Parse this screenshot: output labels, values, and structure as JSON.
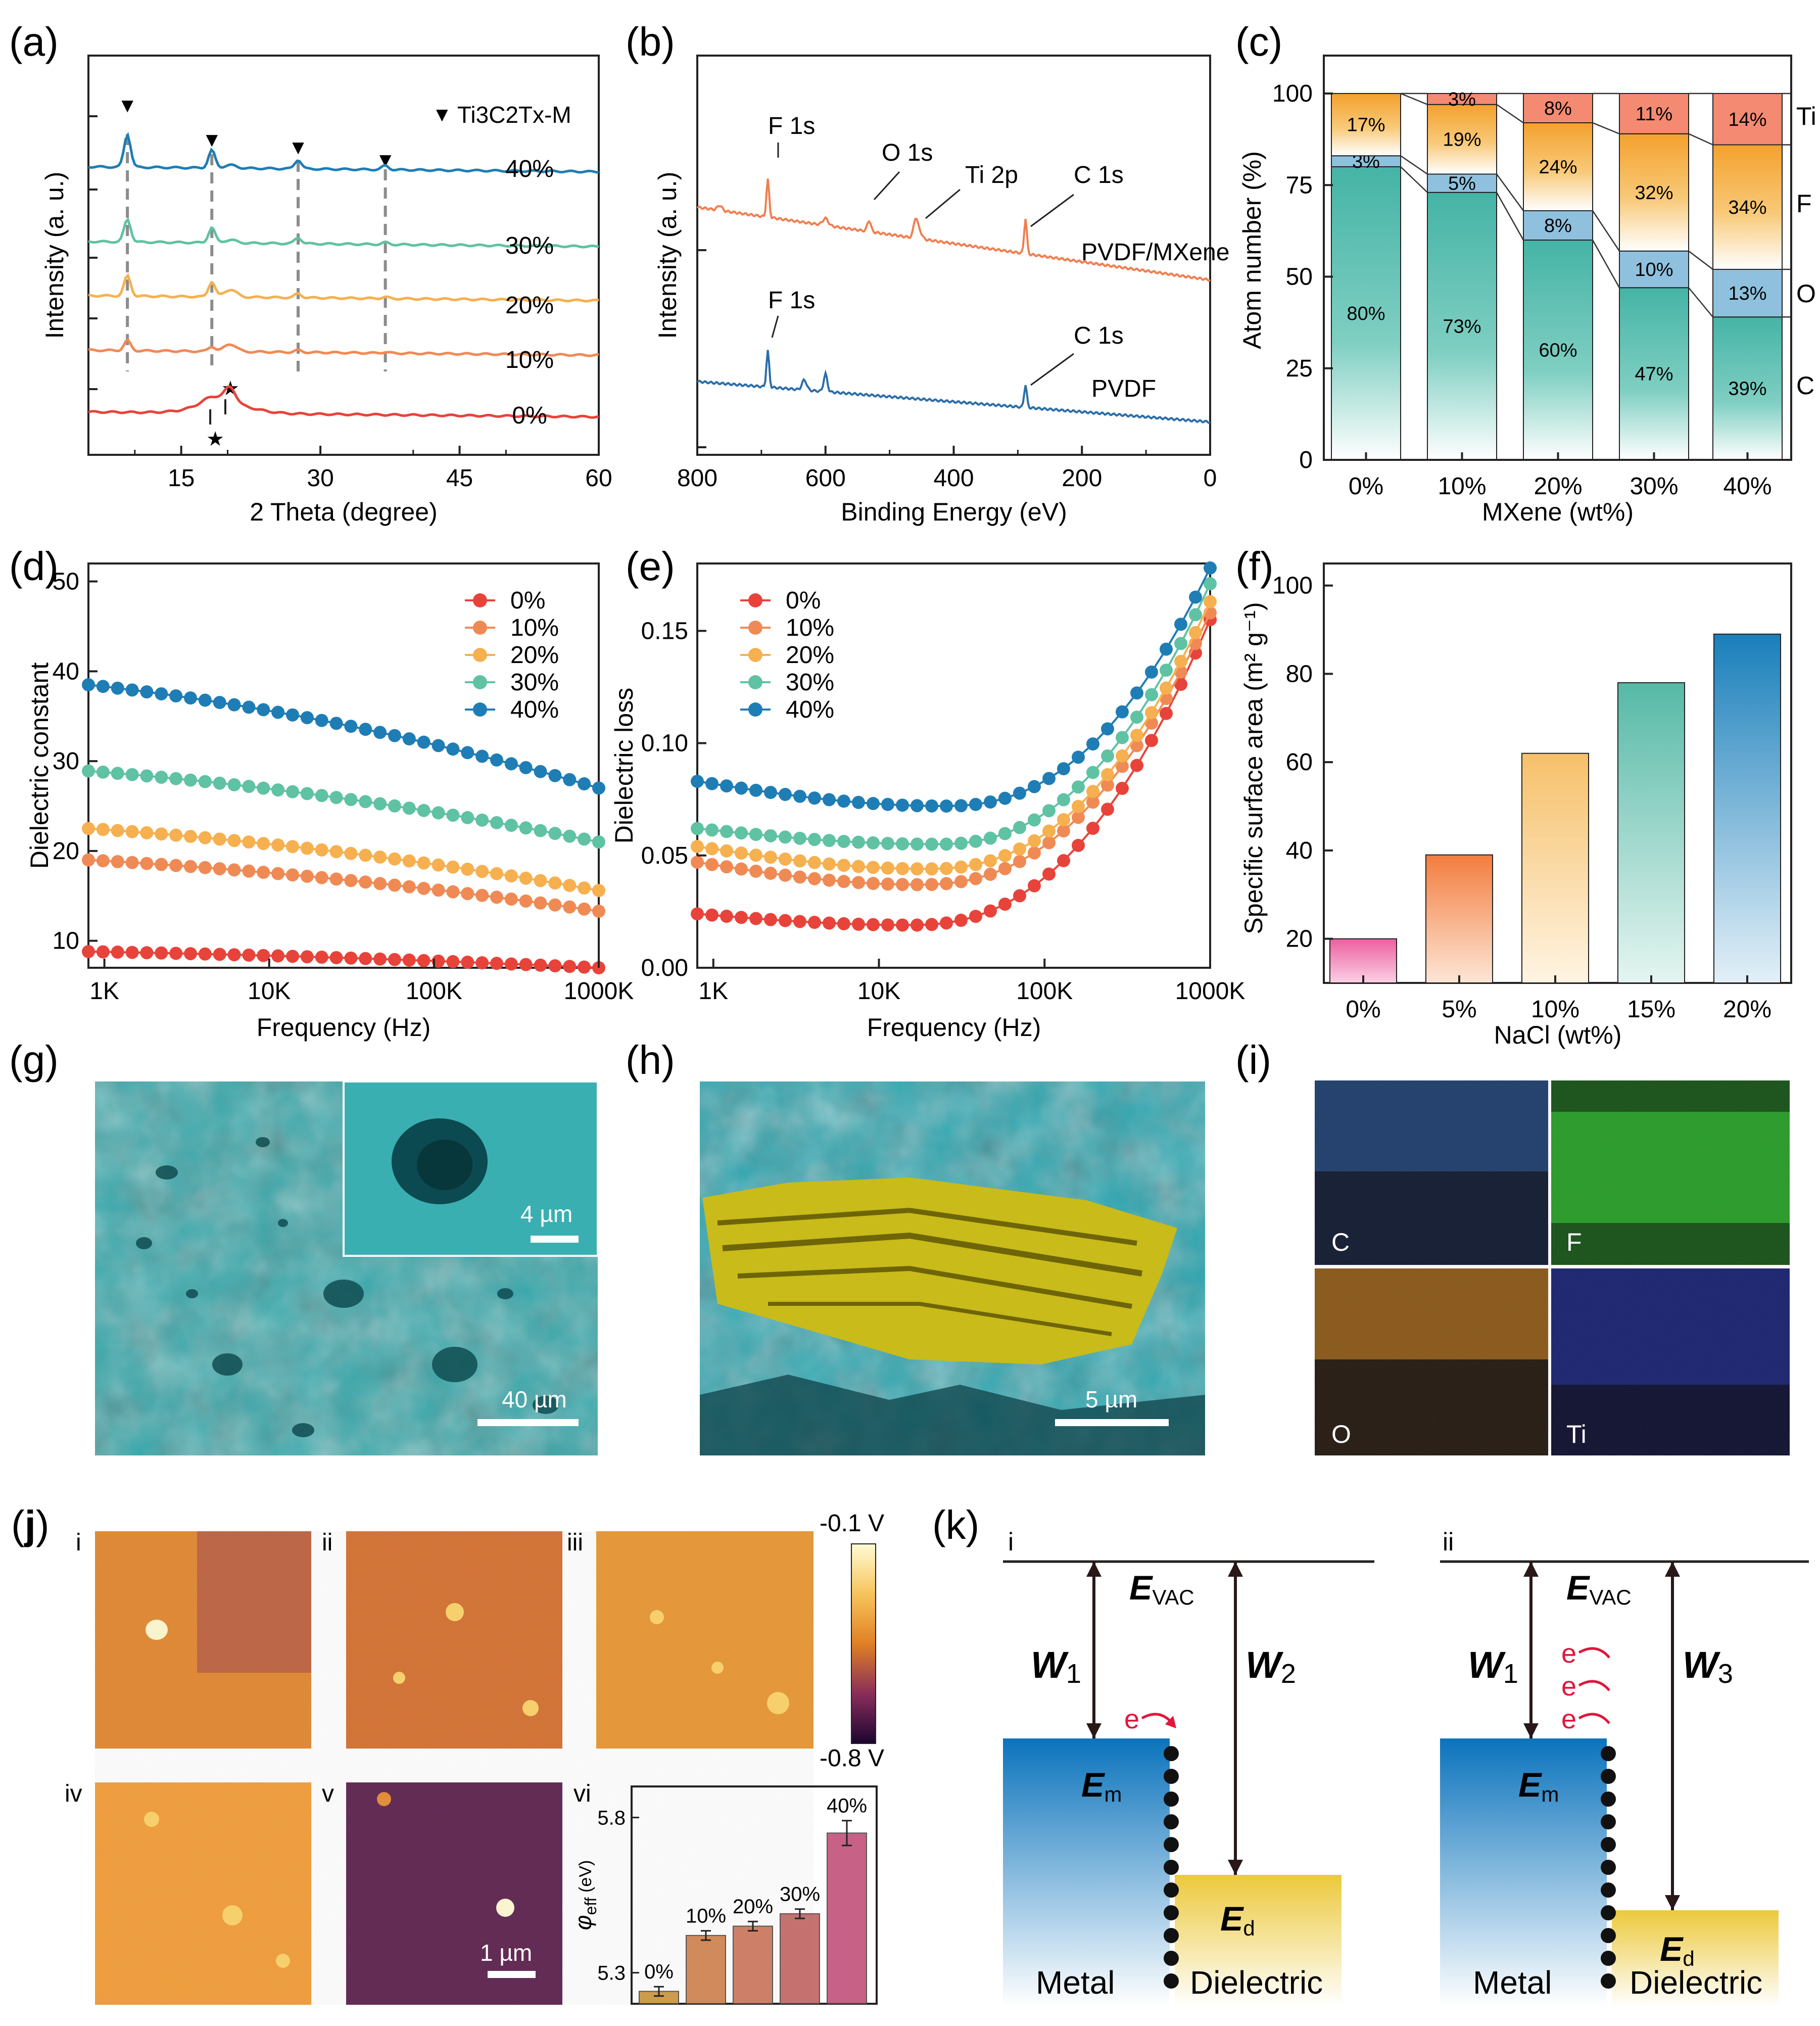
{
  "panel_labels": {
    "a": "(a)",
    "b": "(b)",
    "c": "(c)",
    "d": "(d)",
    "e": "(e)",
    "f": "(f)",
    "g": "(g)",
    "h": "(h)",
    "i": "(i)",
    "j_open": "(",
    "j_letter": "j",
    "j_close": ")",
    "k": "(k)"
  },
  "colors": {
    "s0": "#e8433a",
    "s10": "#f08a55",
    "s20": "#f6b04f",
    "s30": "#5fc2a3",
    "s40": "#1f7db5",
    "xps_top": "#f07e4e",
    "xps_bottom": "#2b6ea8",
    "ref_line": "#8c8c8c",
    "c_C": "#4bb8a9",
    "c_O": "#8fc1de",
    "c_F": "#fcd88a",
    "c_Ti": "#f48a72",
    "sem_bg": "#35a9ad",
    "sem_yellow": "#cfc21c",
    "metal": "#0f77c0",
    "dielectric": "#eed04e",
    "electron": "#e0163c"
  },
  "chart_data": [
    {
      "id": "a",
      "type": "line",
      "xlabel": "2 Theta (degree)",
      "ylabel": "Intensity (a. u.)",
      "xlim": [
        5,
        60
      ],
      "xticks": [
        "15",
        "30",
        "45",
        "60"
      ],
      "legend": "Ti3C2Tx-M",
      "legend_marker": "▼",
      "series": [
        {
          "name": "0%",
          "color": "#e8433a"
        },
        {
          "name": "10%",
          "color": "#f08a55"
        },
        {
          "name": "20%",
          "color": "#f6b04f"
        },
        {
          "name": "30%",
          "color": "#5fc2a3"
        },
        {
          "name": "40%",
          "color": "#1f7db5"
        }
      ],
      "mxene_peaks_deg": [
        9.2,
        18.3,
        27.6,
        37.0
      ],
      "pvdf_peaks_deg": [
        18.4,
        20.3
      ],
      "pvdf_marker": "★"
    },
    {
      "id": "b",
      "type": "line",
      "xlabel": "Binding Energy (eV)",
      "ylabel": "Intensity (a. u.)",
      "xlim": [
        800,
        0
      ],
      "xticks": [
        "800",
        "600",
        "400",
        "200",
        "0"
      ],
      "series": [
        {
          "name": "PVDF/MXene",
          "color": "#f07e4e"
        },
        {
          "name": "PVDF",
          "color": "#2b6ea8"
        }
      ],
      "annotations_top": [
        "F 1s",
        "O 1s",
        "Ti 2p",
        "C 1s"
      ],
      "annotations_bottom": [
        "F 1s",
        "C 1s"
      ]
    },
    {
      "id": "c",
      "type": "bar",
      "stacked": true,
      "xlabel": "MXene (wt%)",
      "ylabel": "Atom number (%)",
      "ylim": [
        0,
        100
      ],
      "yticks": [
        "0",
        "25",
        "50",
        "75",
        "100"
      ],
      "categories": [
        "0%",
        "10%",
        "20%",
        "30%",
        "40%"
      ],
      "series": [
        {
          "name": "C",
          "values": [
            80,
            73,
            60,
            47,
            39
          ],
          "labels": [
            "80%",
            "73%",
            "60%",
            "47%",
            "39%"
          ]
        },
        {
          "name": "O",
          "values": [
            3,
            5,
            8,
            10,
            13
          ],
          "labels": [
            "3%",
            "5%",
            "8%",
            "10%",
            "13%"
          ]
        },
        {
          "name": "F",
          "values": [
            17,
            19,
            24,
            32,
            34
          ],
          "labels": [
            "17%",
            "19%",
            "24%",
            "32%",
            "34%"
          ]
        },
        {
          "name": "Ti",
          "values": [
            0,
            3,
            8,
            11,
            14
          ],
          "labels": [
            "",
            "3%",
            "8%",
            "11%",
            "14%"
          ]
        }
      ]
    },
    {
      "id": "d",
      "type": "line",
      "xlabel": "Frequency (Hz)",
      "ylabel": "Dielectric constant",
      "xscale": "log",
      "xlim": [
        800,
        1000000
      ],
      "xticks": [
        "1K",
        "10K",
        "100K",
        "1000K"
      ],
      "ylim": [
        7,
        52
      ],
      "yticks": [
        "10",
        "20",
        "30",
        "40",
        "50"
      ],
      "series": [
        {
          "name": "0%",
          "start": 8.8,
          "end": 7.0
        },
        {
          "name": "10%",
          "start": 19.0,
          "end": 13.3
        },
        {
          "name": "20%",
          "start": 22.5,
          "end": 15.6
        },
        {
          "name": "30%",
          "start": 28.9,
          "end": 21.0
        },
        {
          "name": "40%",
          "start": 38.5,
          "end": 27.0
        }
      ]
    },
    {
      "id": "e",
      "type": "line",
      "xlabel": "Frequency (Hz)",
      "ylabel": "Dielectric loss",
      "xscale": "log",
      "xlim": [
        800,
        1000000
      ],
      "xticks": [
        "1K",
        "10K",
        "100K",
        "1000K"
      ],
      "ylim": [
        0,
        0.18
      ],
      "yticks": [
        "0.00",
        "0.05",
        "0.10",
        "0.15"
      ],
      "series": [
        {
          "name": "0%",
          "base": 0.024,
          "min": 0.019,
          "end": 0.155
        },
        {
          "name": "10%",
          "base": 0.047,
          "min": 0.037,
          "end": 0.158
        },
        {
          "name": "20%",
          "base": 0.054,
          "min": 0.044,
          "end": 0.163
        },
        {
          "name": "30%",
          "base": 0.062,
          "min": 0.055,
          "end": 0.171
        },
        {
          "name": "40%",
          "base": 0.083,
          "min": 0.072,
          "end": 0.178
        }
      ]
    },
    {
      "id": "f",
      "type": "bar",
      "xlabel": "NaCl (wt%)",
      "ylabel": "Specific surface area (m² g⁻¹)",
      "ylim": [
        10,
        105
      ],
      "yticks": [
        "20",
        "40",
        "60",
        "80",
        "100"
      ],
      "categories": [
        "0%",
        "5%",
        "10%",
        "15%",
        "20%"
      ],
      "values": [
        20,
        39,
        62,
        78,
        89
      ],
      "bar_colors": [
        "#ec5fa0",
        "#f37d3f",
        "#f6c06a",
        "#56b9a6",
        "#1a7fbb"
      ]
    },
    {
      "id": "j-vi",
      "type": "bar",
      "ylabel": "φ_eff (eV)",
      "ylim": [
        5.2,
        5.9
      ],
      "yticks": [
        "5.3",
        "5.8"
      ],
      "categories": [
        "0%",
        "10%",
        "20%",
        "30%",
        "40%"
      ],
      "values": [
        5.24,
        5.42,
        5.45,
        5.49,
        5.75
      ],
      "errors": [
        0.015,
        0.015,
        0.015,
        0.015,
        0.04
      ],
      "bar_colors": [
        "#c9923a",
        "#cd7e4a",
        "#c97458",
        "#bf6362",
        "#c35079"
      ]
    }
  ],
  "sem": {
    "g_inset_scale": "4 µm",
    "g_scale": "40 µm",
    "h_scale": "5 µm"
  },
  "eds": {
    "C": "C",
    "F": "F",
    "O": "O",
    "Ti": "Ti"
  },
  "kpfm": {
    "labels": [
      "i",
      "ii",
      "iii",
      "iv",
      "v",
      "vi"
    ],
    "cbar_max": "-0.1 V",
    "cbar_min": "-0.8 V",
    "scale": "1 µm"
  },
  "band": {
    "i": "i",
    "ii": "ii",
    "E": "E",
    "vac": "VAC",
    "W": "W",
    "one": "1",
    "two": "2",
    "three": "3",
    "m": "m",
    "d": "d",
    "e": "e",
    "metal": "Metal",
    "dielectric": "Dielectric"
  }
}
